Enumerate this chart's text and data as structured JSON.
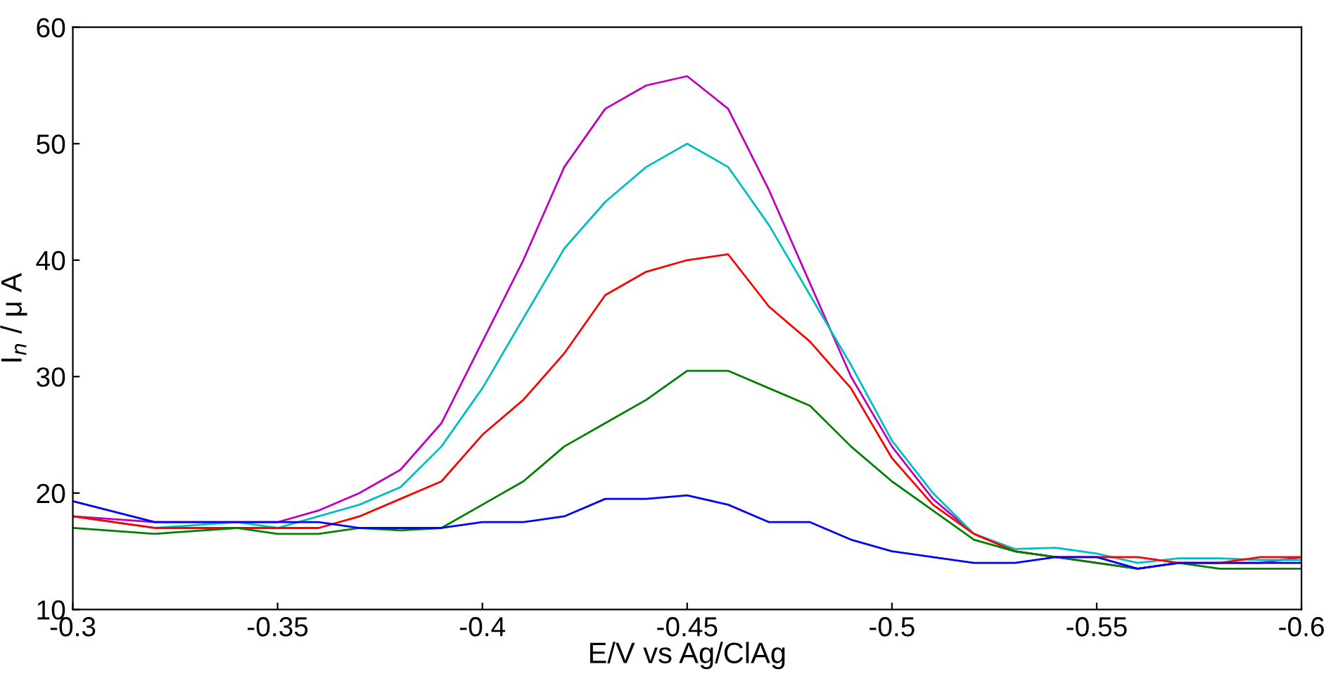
{
  "chart_data": {
    "type": "line",
    "xlabel": "E/V vs Ag/ClAg",
    "ylabel": "I$_{n}$ / μ A",
    "x": [
      -0.3,
      -0.32,
      -0.34,
      -0.35,
      -0.36,
      -0.37,
      -0.38,
      -0.39,
      -0.4,
      -0.41,
      -0.42,
      -0.43,
      -0.44,
      -0.45,
      -0.46,
      -0.47,
      -0.48,
      -0.49,
      -0.5,
      -0.51,
      -0.52,
      -0.53,
      -0.54,
      -0.55,
      -0.56,
      -0.57,
      -0.58,
      -0.59,
      -0.6
    ],
    "series": [
      {
        "color": "#bf00bf",
        "values": [
          18,
          17.5,
          17.5,
          17.5,
          18.5,
          20,
          22,
          26,
          33,
          40,
          48,
          53,
          55,
          55.8,
          53,
          46,
          38,
          30,
          24,
          19.5,
          16.5,
          15,
          14.5,
          14,
          13.5,
          14,
          14,
          14,
          14.5
        ]
      },
      {
        "color": "#00bfbf",
        "values": [
          18,
          17,
          17.5,
          17,
          18,
          19,
          20.5,
          24,
          29,
          35,
          41,
          45,
          48,
          50,
          48,
          43,
          37,
          31,
          24.5,
          20,
          16.5,
          15.2,
          15.3,
          14.8,
          14.0,
          14.4,
          14.4,
          14.25,
          14.25
        ]
      },
      {
        "color": "#ff0000",
        "values": [
          18,
          17,
          17,
          17,
          17,
          18,
          19.5,
          21,
          25,
          28,
          32,
          37,
          39,
          40,
          40.5,
          36,
          33,
          29,
          23,
          19,
          16.5,
          15,
          14.5,
          14.5,
          14.5,
          14,
          14,
          14.5,
          14.5
        ]
      },
      {
        "color": "#008000",
        "values": [
          17,
          16.5,
          17,
          16.5,
          16.5,
          17,
          16.8,
          17,
          19,
          21,
          24,
          26,
          28,
          30.5,
          30.5,
          29,
          27.5,
          24,
          21,
          18.5,
          16,
          15,
          14.5,
          14,
          13.5,
          14,
          13.5,
          13.5,
          13.5
        ]
      },
      {
        "color": "#0000ff",
        "values": [
          19.3,
          17.5,
          17.5,
          17.5,
          17.5,
          17,
          17,
          17,
          17.5,
          17.5,
          18,
          19.5,
          19.5,
          19.8,
          19,
          17.5,
          17.5,
          16,
          15,
          14.5,
          14,
          14,
          14.5,
          14.5,
          13.5,
          14,
          14,
          14,
          14
        ]
      }
    ],
    "xlim": [
      -0.3,
      -0.6
    ],
    "xticks": [
      -0.3,
      -0.35,
      -0.4,
      -0.45,
      -0.5,
      -0.55,
      -0.6
    ],
    "ylim": [
      10,
      60
    ],
    "yticks": [
      10,
      20,
      30,
      40,
      50,
      60
    ],
    "grid": false,
    "legend": false,
    "marker": "none",
    "line_style": "solid"
  }
}
